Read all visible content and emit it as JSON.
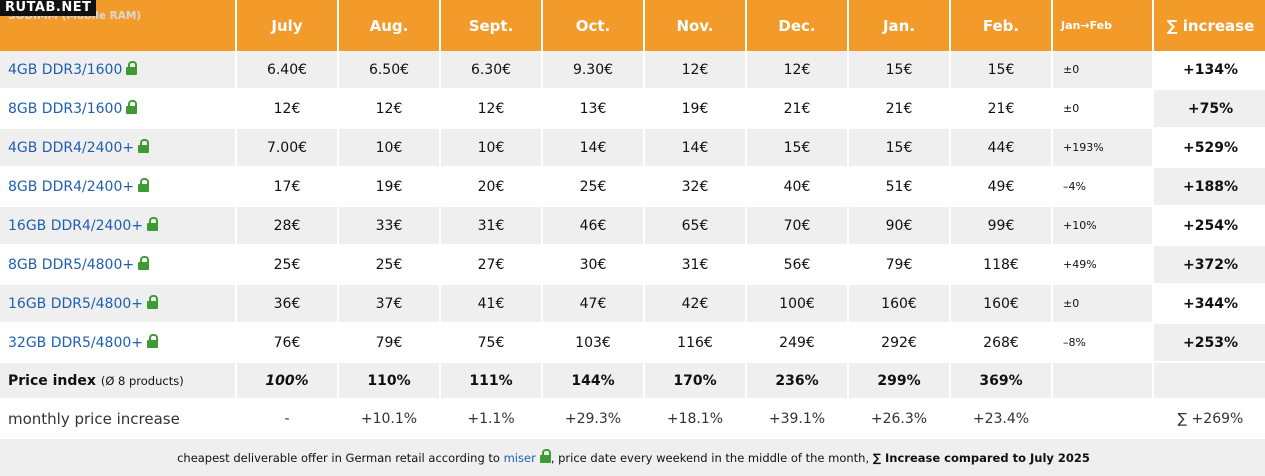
{
  "watermark": "RUTAB.NET",
  "chart_data": {
    "type": "table",
    "header": {
      "product_col": "SODIMM (Mobile RAM)",
      "months": [
        "July",
        "Aug.",
        "Sept.",
        "Oct.",
        "Nov.",
        "Dec.",
        "Jan.",
        "Feb."
      ],
      "jan_feb": "Jan→Feb",
      "increase": "∑ increase"
    },
    "rows": [
      {
        "product": "4GB DDR3/1600",
        "prices": [
          "6.40€",
          "6.50€",
          "6.30€",
          "9.30€",
          "12€",
          "12€",
          "15€",
          "15€"
        ],
        "jan_feb": "±0",
        "increase": "+134%"
      },
      {
        "product": "8GB DDR3/1600",
        "prices": [
          "12€",
          "12€",
          "12€",
          "13€",
          "19€",
          "21€",
          "21€",
          "21€"
        ],
        "jan_feb": "±0",
        "increase": "+75%"
      },
      {
        "product": "4GB DDR4/2400+",
        "prices": [
          "7.00€",
          "10€",
          "10€",
          "14€",
          "14€",
          "15€",
          "15€",
          "44€"
        ],
        "jan_feb": "+193%",
        "increase": "+529%"
      },
      {
        "product": "8GB DDR4/2400+",
        "prices": [
          "17€",
          "19€",
          "20€",
          "25€",
          "32€",
          "40€",
          "51€",
          "49€"
        ],
        "jan_feb": "–4%",
        "increase": "+188%"
      },
      {
        "product": "16GB DDR4/2400+",
        "prices": [
          "28€",
          "33€",
          "31€",
          "46€",
          "65€",
          "70€",
          "90€",
          "99€"
        ],
        "jan_feb": "+10%",
        "increase": "+254%"
      },
      {
        "product": "8GB DDR5/4800+",
        "prices": [
          "25€",
          "25€",
          "27€",
          "30€",
          "31€",
          "56€",
          "79€",
          "118€"
        ],
        "jan_feb": "+49%",
        "increase": "+372%"
      },
      {
        "product": "16GB DDR5/4800+",
        "prices": [
          "36€",
          "37€",
          "41€",
          "47€",
          "42€",
          "100€",
          "160€",
          "160€"
        ],
        "jan_feb": "±0",
        "increase": "+344%"
      },
      {
        "product": "32GB DDR5/4800+",
        "prices": [
          "76€",
          "79€",
          "75€",
          "103€",
          "116€",
          "249€",
          "292€",
          "268€"
        ],
        "jan_feb": "–8%",
        "increase": "+253%"
      }
    ],
    "price_index": {
      "label": "Price index",
      "sublabel": "(Ø 8 products)",
      "values": [
        "100%",
        "110%",
        "111%",
        "144%",
        "170%",
        "236%",
        "299%",
        "369%"
      ]
    },
    "monthly_increase": {
      "label": "monthly price increase",
      "values": [
        "-",
        "+10.1%",
        "+1.1%",
        "+29.3%",
        "+18.1%",
        "+39.1%",
        "+26.3%",
        "+23.4%"
      ],
      "total": "∑ +269%"
    },
    "footnote": {
      "part1": "cheapest deliverable offer in German retail according to ",
      "link": "miser",
      "part2": ", price date every weekend in the middle of the month, ",
      "bold": "∑ Increase compared to July 2025"
    },
    "colors": {
      "header_bg": "#f29a2a",
      "stripe": "#efefef",
      "product_link": "#1f5fb0",
      "lock": "#3e9b34"
    },
    "icons": {
      "lock": "lock-icon"
    }
  }
}
